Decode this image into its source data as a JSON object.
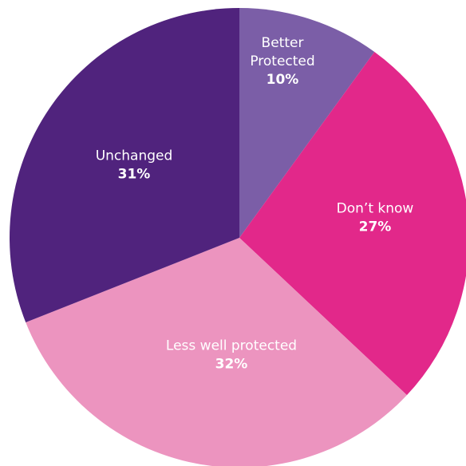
{
  "chart_data": {
    "type": "pie",
    "start_angle_deg": 0,
    "direction": "clockwise",
    "legend": "none",
    "slices": [
      {
        "label": [
          "Better",
          "Protected"
        ],
        "value": 10,
        "display": "10%",
        "color": "#7b5ea7"
      },
      {
        "label": [
          "Don’t know"
        ],
        "value": 27,
        "display": "27%",
        "color": "#e2288a"
      },
      {
        "label": [
          "Less well protected"
        ],
        "value": 32,
        "display": "32%",
        "color": "#ec94bf"
      },
      {
        "label": [
          "Unchanged"
        ],
        "value": 31,
        "display": "31%",
        "color": "#50237d"
      }
    ]
  }
}
